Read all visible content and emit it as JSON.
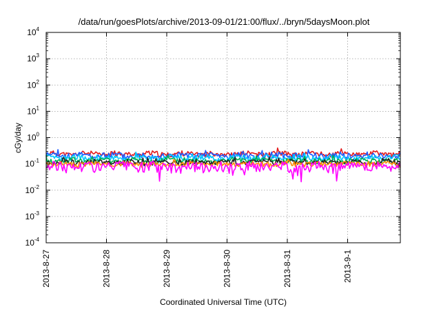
{
  "chart_data": {
    "type": "line",
    "title": "/data/run/goesPlots/archive/2013-09-01/21:00/flux/../bryn/5daysMoon.plot",
    "xlabel": "Coordinated Universal Time (UTC)",
    "ylabel": "cGy/day",
    "y_scale": "log",
    "ylim": [
      0.0001,
      10000
    ],
    "xlim": [
      "2013-8-27",
      "2013-9-1 21:00"
    ],
    "x_ticks": [
      "2013-8-27",
      "2013-8-28",
      "2013-8-29",
      "2013-8-30",
      "2013-8-31",
      "2013-9-1"
    ],
    "y_ticks": [
      {
        "base": "10",
        "exp": "4",
        "value": 10000
      },
      {
        "base": "10",
        "exp": "3",
        "value": 1000
      },
      {
        "base": "10",
        "exp": "2",
        "value": 100
      },
      {
        "base": "10",
        "exp": "1",
        "value": 10
      },
      {
        "base": "10",
        "exp": "0",
        "value": 1
      },
      {
        "base": "10",
        "exp": "-1",
        "value": 0.1
      },
      {
        "base": "10",
        "exp": "-2",
        "value": 0.01
      },
      {
        "base": "10",
        "exp": "-3",
        "value": 0.001
      },
      {
        "base": "10",
        "exp": "-4",
        "value": 0.0001
      }
    ],
    "grid": true,
    "legend": "none",
    "series": [
      {
        "color": "#e41a1c",
        "level": 0.24,
        "jitter": 0.09,
        "seed": 11
      },
      {
        "color": "#1f5bff",
        "level": 0.21,
        "jitter": 0.1,
        "seed": 23
      },
      {
        "color": "#00c8ff",
        "level": 0.17,
        "jitter": 0.07,
        "seed": 37
      },
      {
        "color": "#00b050",
        "level": 0.135,
        "jitter": 0.05,
        "seed": 41
      },
      {
        "color": "#222222",
        "level": 0.115,
        "jitter": 0.04,
        "seed": 53
      },
      {
        "color": "#ff8c00",
        "level": 0.1,
        "jitter": 0.035,
        "seed": 67
      },
      {
        "color": "#ff00ff",
        "level": 0.082,
        "jitter": 0.06,
        "seed": 79
      }
    ]
  }
}
